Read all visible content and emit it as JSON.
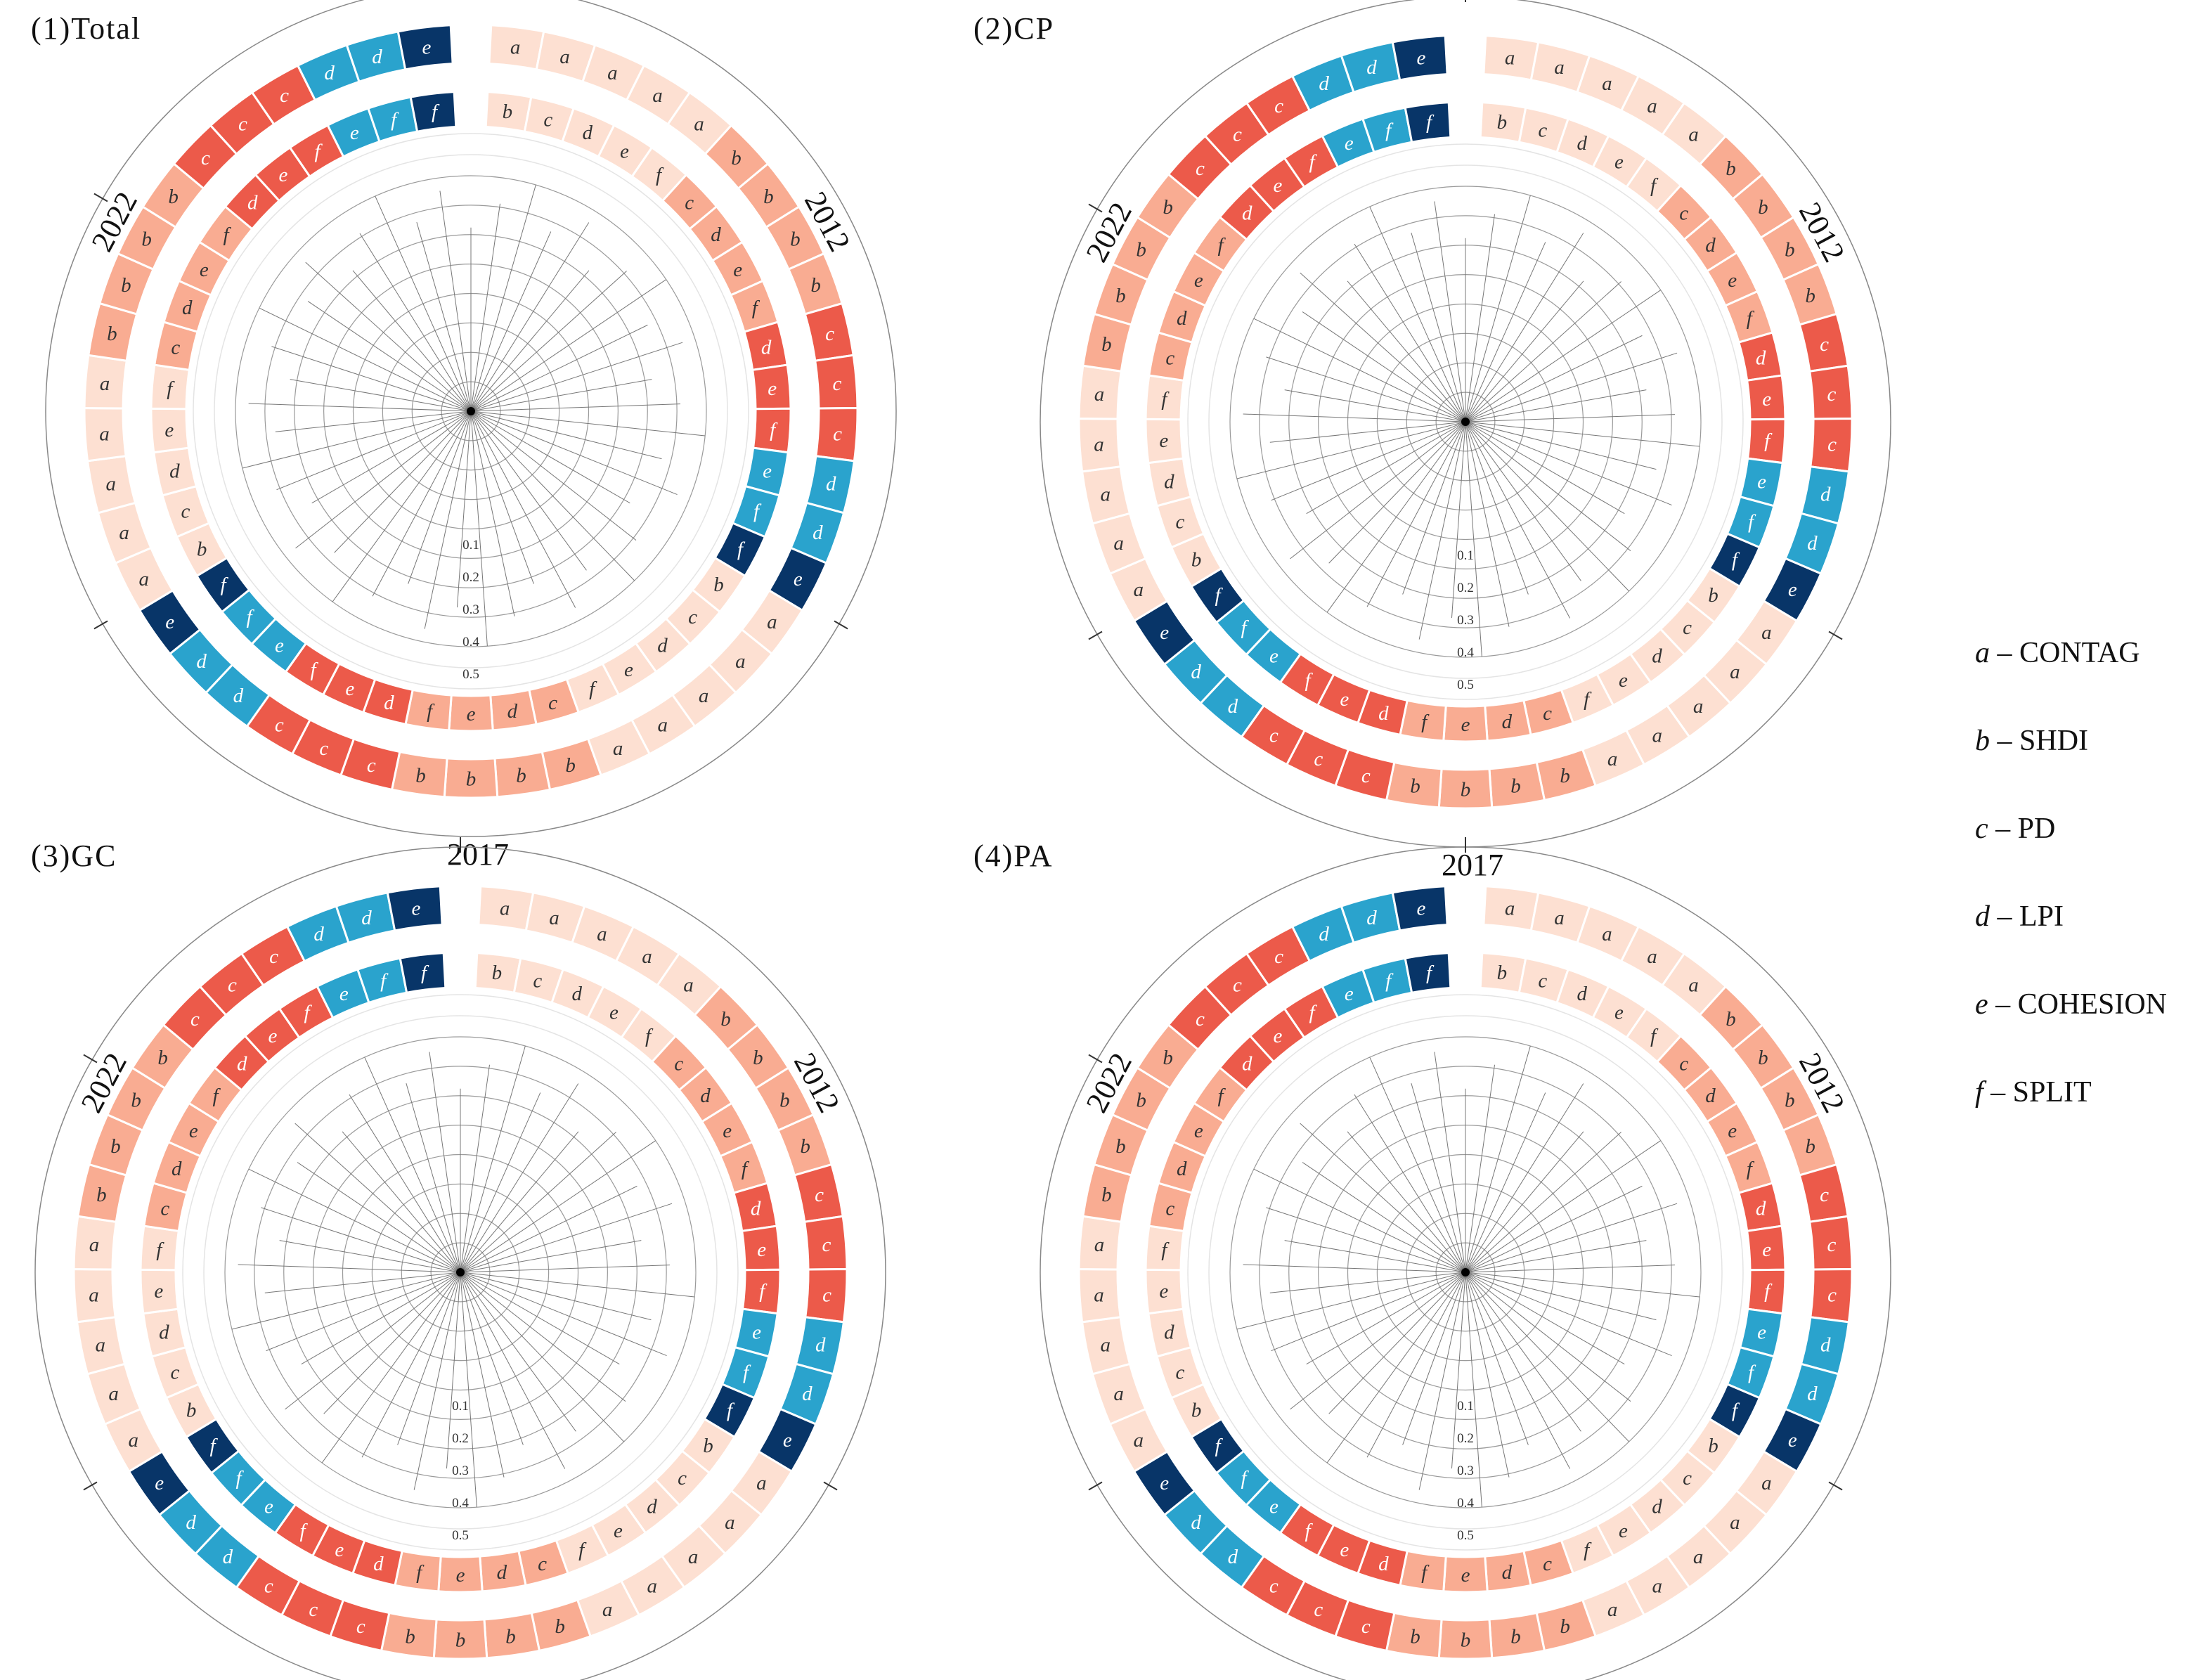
{
  "chart_data": {
    "type": "circular-heatmap",
    "description_source": "four circular sequence charts of landscape indices ranked across years",
    "segment_colors": {
      "a": "#fde0d2",
      "b": "#f9ac92",
      "c": "#ec5a4a",
      "d": "#2aa3cd",
      "e": "#083568",
      "f": "#083568"
    },
    "palette": {
      "a": "#fde0d2",
      "b": "#f9ac92",
      "c": "#ec5a4a",
      "d": "#f9ac92",
      "e": "#ec5a4a",
      "f": "#ec5a4a",
      "blue": "#2aa3cd",
      "navy": "#083568"
    },
    "year_labels": [
      "2012",
      "2017",
      "2022"
    ],
    "radial_ticks": [
      "0.1",
      "0.2",
      "0.3",
      "0.4",
      "0.5"
    ],
    "panels": [
      {
        "title": "(1)Total",
        "outer_ring": [
          {
            "l": "a",
            "c": "#fde0d2"
          },
          {
            "l": "a",
            "c": "#fde0d2"
          },
          {
            "l": "a",
            "c": "#fde0d2"
          },
          {
            "l": "a",
            "c": "#fde0d2"
          },
          {
            "l": "a",
            "c": "#fde0d2"
          },
          {
            "l": "b",
            "c": "#f9ac92"
          },
          {
            "l": "b",
            "c": "#f9ac92"
          },
          {
            "l": "b",
            "c": "#f9ac92"
          },
          {
            "l": "b",
            "c": "#f9ac92"
          },
          {
            "l": "c",
            "c": "#ec5a4a"
          },
          {
            "l": "c",
            "c": "#ec5a4a"
          },
          {
            "l": "c",
            "c": "#ec5a4a"
          },
          {
            "l": "d",
            "c": "#2aa3cd"
          },
          {
            "l": "d",
            "c": "#2aa3cd"
          },
          {
            "l": "e",
            "c": "#083568"
          },
          {
            "l": "a",
            "c": "#fde0d2"
          },
          {
            "l": "a",
            "c": "#fde0d2"
          },
          {
            "l": "a",
            "c": "#fde0d2"
          },
          {
            "l": "a",
            "c": "#fde0d2"
          },
          {
            "l": "a",
            "c": "#fde0d2"
          },
          {
            "l": "b",
            "c": "#f9ac92"
          },
          {
            "l": "b",
            "c": "#f9ac92"
          },
          {
            "l": "b",
            "c": "#f9ac92"
          },
          {
            "l": "b",
            "c": "#f9ac92"
          },
          {
            "l": "c",
            "c": "#ec5a4a"
          },
          {
            "l": "c",
            "c": "#ec5a4a"
          },
          {
            "l": "c",
            "c": "#ec5a4a"
          },
          {
            "l": "d",
            "c": "#2aa3cd"
          },
          {
            "l": "d",
            "c": "#2aa3cd"
          },
          {
            "l": "e",
            "c": "#083568"
          },
          {
            "l": "a",
            "c": "#fde0d2"
          },
          {
            "l": "a",
            "c": "#fde0d2"
          },
          {
            "l": "a",
            "c": "#fde0d2"
          },
          {
            "l": "a",
            "c": "#fde0d2"
          },
          {
            "l": "a",
            "c": "#fde0d2"
          },
          {
            "l": "b",
            "c": "#f9ac92"
          },
          {
            "l": "b",
            "c": "#f9ac92"
          },
          {
            "l": "b",
            "c": "#f9ac92"
          },
          {
            "l": "b",
            "c": "#f9ac92"
          },
          {
            "l": "c",
            "c": "#ec5a4a"
          },
          {
            "l": "c",
            "c": "#ec5a4a"
          },
          {
            "l": "c",
            "c": "#ec5a4a"
          },
          {
            "l": "d",
            "c": "#2aa3cd"
          },
          {
            "l": "d",
            "c": "#2aa3cd"
          },
          {
            "l": "e",
            "c": "#083568"
          }
        ],
        "inner_ring": [
          {
            "l": "b",
            "c": "#fde0d2"
          },
          {
            "l": "c",
            "c": "#fde0d2"
          },
          {
            "l": "d",
            "c": "#fde0d2"
          },
          {
            "l": "e",
            "c": "#fde0d2"
          },
          {
            "l": "f",
            "c": "#fde0d2"
          },
          {
            "l": "c",
            "c": "#f9ac92"
          },
          {
            "l": "d",
            "c": "#f9ac92"
          },
          {
            "l": "e",
            "c": "#f9ac92"
          },
          {
            "l": "f",
            "c": "#f9ac92"
          },
          {
            "l": "d",
            "c": "#ec5a4a"
          },
          {
            "l": "e",
            "c": "#ec5a4a"
          },
          {
            "l": "f",
            "c": "#ec5a4a"
          },
          {
            "l": "e",
            "c": "#2aa3cd"
          },
          {
            "l": "f",
            "c": "#2aa3cd"
          },
          {
            "l": "f",
            "c": "#083568"
          },
          {
            "l": "b",
            "c": "#fde0d2"
          },
          {
            "l": "c",
            "c": "#fde0d2"
          },
          {
            "l": "d",
            "c": "#fde0d2"
          },
          {
            "l": "e",
            "c": "#fde0d2"
          },
          {
            "l": "f",
            "c": "#fde0d2"
          },
          {
            "l": "c",
            "c": "#f9ac92"
          },
          {
            "l": "d",
            "c": "#f9ac92"
          },
          {
            "l": "e",
            "c": "#f9ac92"
          },
          {
            "l": "f",
            "c": "#f9ac92"
          },
          {
            "l": "d",
            "c": "#ec5a4a"
          },
          {
            "l": "e",
            "c": "#ec5a4a"
          },
          {
            "l": "f",
            "c": "#ec5a4a"
          },
          {
            "l": "e",
            "c": "#2aa3cd"
          },
          {
            "l": "f",
            "c": "#2aa3cd"
          },
          {
            "l": "f",
            "c": "#083568"
          },
          {
            "l": "b",
            "c": "#fde0d2"
          },
          {
            "l": "c",
            "c": "#fde0d2"
          },
          {
            "l": "d",
            "c": "#fde0d2"
          },
          {
            "l": "e",
            "c": "#fde0d2"
          },
          {
            "l": "f",
            "c": "#fde0d2"
          },
          {
            "l": "c",
            "c": "#f9ac92"
          },
          {
            "l": "d",
            "c": "#f9ac92"
          },
          {
            "l": "e",
            "c": "#f9ac92"
          },
          {
            "l": "f",
            "c": "#f9ac92"
          },
          {
            "l": "d",
            "c": "#ec5a4a"
          },
          {
            "l": "e",
            "c": "#ec5a4a"
          },
          {
            "l": "f",
            "c": "#ec5a4a"
          },
          {
            "l": "e",
            "c": "#2aa3cd"
          },
          {
            "l": "f",
            "c": "#2aa3cd"
          },
          {
            "l": "f",
            "c": "#083568"
          }
        ]
      },
      {
        "title": "(2)CP",
        "same_as": 0
      },
      {
        "title": "(3)GC",
        "same_as": 0
      },
      {
        "title": "(4)PA",
        "same_as": 0
      }
    ],
    "legend": [
      {
        "key": "a",
        "label": "CONTAG"
      },
      {
        "key": "b",
        "label": "SHDI"
      },
      {
        "key": "c",
        "label": "PD"
      },
      {
        "key": "d",
        "label": "LPI"
      },
      {
        "key": "e",
        "label": "COHESION"
      },
      {
        "key": "f",
        "label": "SPLIT"
      }
    ]
  }
}
